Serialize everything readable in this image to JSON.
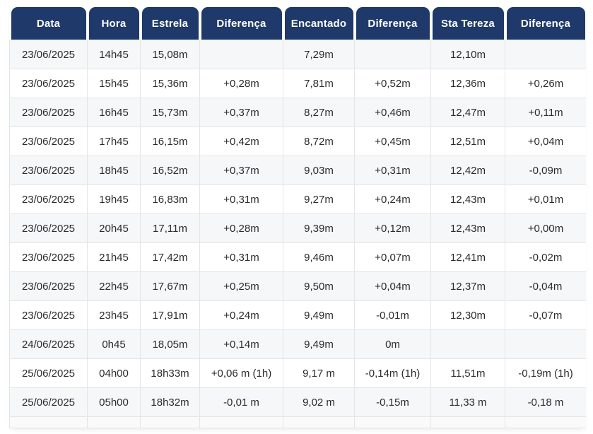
{
  "chart_data": {
    "type": "table",
    "columns": [
      "Data",
      "Hora",
      "Estrela",
      "Diferença",
      "Encantado",
      "Diferença",
      "Sta Tereza",
      "Diferença"
    ],
    "rows": [
      [
        "23/06/2025",
        "14h45",
        "15,08m",
        "",
        "7,29m",
        "",
        "12,10m",
        ""
      ],
      [
        "23/06/2025",
        "15h45",
        "15,36m",
        "+0,28m",
        "7,81m",
        "+0,52m",
        "12,36m",
        "+0,26m"
      ],
      [
        "23/06/2025",
        "16h45",
        "15,73m",
        "+0,37m",
        "8,27m",
        "+0,46m",
        "12,47m",
        "+0,11m"
      ],
      [
        "23/06/2025",
        "17h45",
        "16,15m",
        "+0,42m",
        "8,72m",
        "+0,45m",
        "12,51m",
        "+0,04m"
      ],
      [
        "23/06/2025",
        "18h45",
        "16,52m",
        "+0,37m",
        "9,03m",
        "+0,31m",
        "12,42m",
        "-0,09m"
      ],
      [
        "23/06/2025",
        "19h45",
        "16,83m",
        "+0,31m",
        "9,27m",
        "+0,24m",
        "12,43m",
        "+0,01m"
      ],
      [
        "23/06/2025",
        "20h45",
        "17,11m",
        "+0,28m",
        "9,39m",
        "+0,12m",
        "12,43m",
        "+0,00m"
      ],
      [
        "23/06/2025",
        "21h45",
        "17,42m",
        "+0,31m",
        "9,46m",
        "+0,07m",
        "12,41m",
        "-0,02m"
      ],
      [
        "23/06/2025",
        "22h45",
        "17,67m",
        "+0,25m",
        "9,50m",
        "+0,04m",
        "12,37m",
        "-0,04m"
      ],
      [
        "23/06/2025",
        "23h45",
        "17,91m",
        "+0,24m",
        "9,49m",
        "-0,01m",
        "12,30m",
        "-0,07m"
      ],
      [
        "24/06/2025",
        "0h45",
        "18,05m",
        "+0,14m",
        "9,49m",
        "0m",
        "",
        ""
      ],
      [
        "25/06/2025",
        "04h00",
        "18h33m",
        "+0,06 m (1h)",
        "9,17 m",
        "-0,14m (1h)",
        "11,51m",
        "-0,19m (1h)"
      ],
      [
        "25/06/2025",
        "05h00",
        "18h32m",
        "-0,01 m",
        "9,02 m",
        "-0,15m",
        "11,33 m",
        "-0,18 m"
      ]
    ],
    "layout": {
      "header_position": "top",
      "striped_rows": true,
      "grid": true
    }
  },
  "colors": {
    "header_bg": "#1e396a",
    "header_text": "#ffffff",
    "row_stripe_bg": "#f6f7f8",
    "row_bg": "#ffffff",
    "border": "#e4e5e7",
    "cell_text": "#2a2b2f"
  }
}
